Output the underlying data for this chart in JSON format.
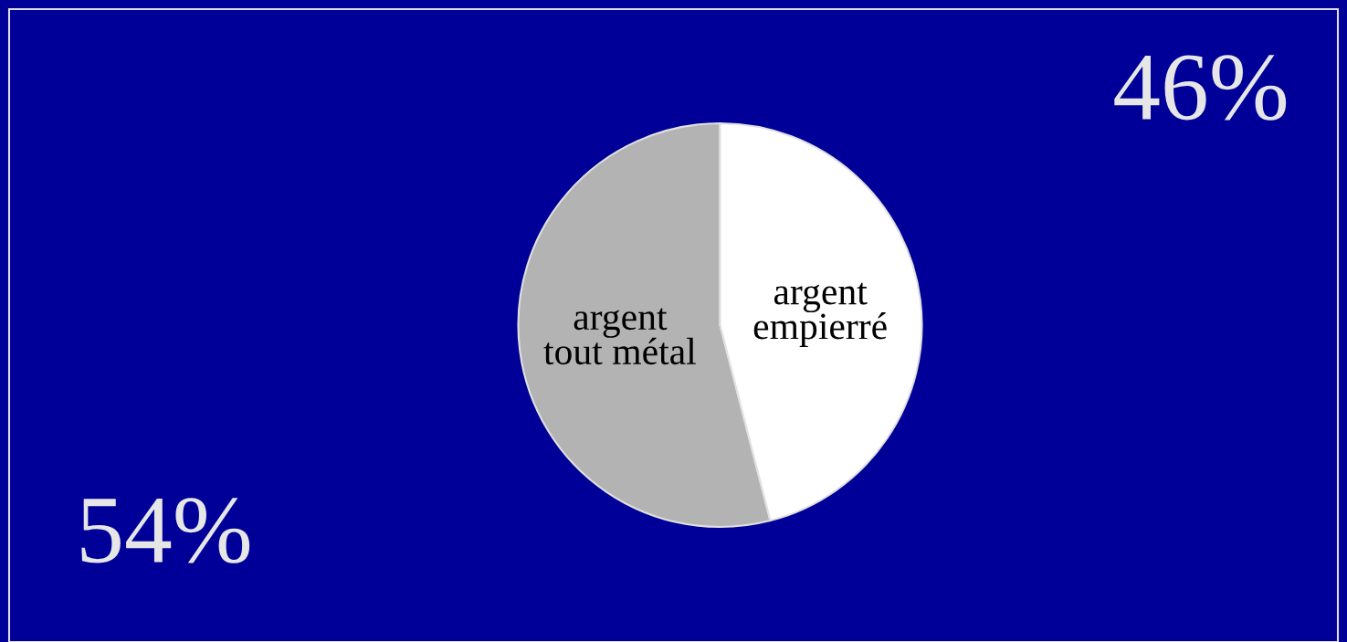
{
  "chart_data": {
    "type": "pie",
    "categories": [
      "argent\ntout métal",
      "argent\nempierré"
    ],
    "values": [
      54,
      46
    ],
    "colors": [
      "#b3b3b3",
      "#ffffff"
    ],
    "value_labels": [
      "54%",
      "46%"
    ]
  }
}
